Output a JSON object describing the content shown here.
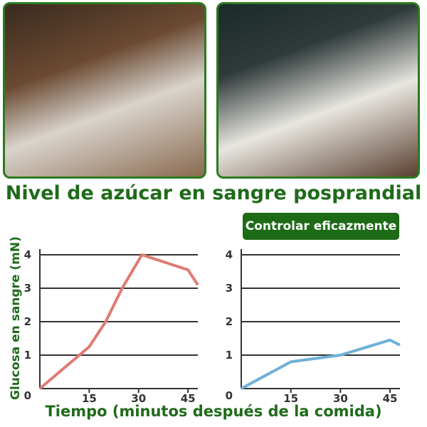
{
  "title": "Nivel de azúcar en sangre posprandial",
  "badge": "Controlar eficazmente",
  "colors": {
    "accent": "#1f6b1a",
    "left_line": "#e07a72",
    "right_line": "#6fb0d8"
  },
  "chart_data": [
    {
      "type": "line",
      "ylabel": "Glucosa en sangre (mN)",
      "xlabel": "Tiempo (minutos después de la comida)",
      "xticks": [
        15,
        30,
        45
      ],
      "yticks": [
        0,
        1,
        2,
        3,
        4
      ],
      "xlim": [
        0,
        48
      ],
      "ylim": [
        0,
        4
      ],
      "grid": "horizontal",
      "series": [
        {
          "x": [
            0,
            15,
            20,
            25,
            31,
            45,
            48
          ],
          "y": [
            0,
            1.25,
            2,
            3,
            4,
            3.55,
            3.1
          ]
        }
      ]
    },
    {
      "type": "line",
      "ylabel": "Glucosa en sangre (mN)",
      "xlabel": "Tiempo (minutos después de la comida)",
      "xticks": [
        15,
        30,
        45
      ],
      "yticks": [
        0,
        1,
        2,
        3,
        4
      ],
      "xlim": [
        0,
        48
      ],
      "ylim": [
        0,
        4
      ],
      "grid": "horizontal",
      "series": [
        {
          "x": [
            0,
            15,
            30,
            45,
            48
          ],
          "y": [
            0,
            0.8,
            1,
            1.45,
            1.3
          ]
        }
      ]
    }
  ]
}
